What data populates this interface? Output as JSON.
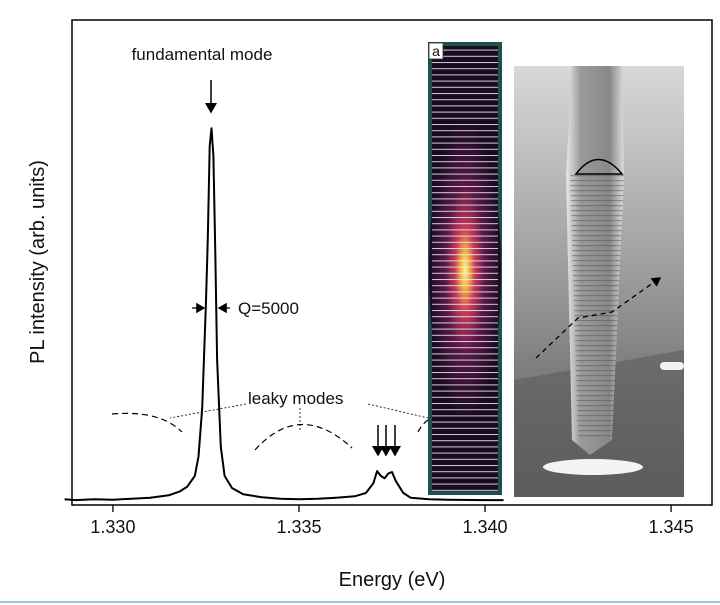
{
  "chart_data": {
    "type": "line",
    "x_label": "Energy (eV)",
    "y_label": "PL intensity (arb. units)",
    "annotations": [
      "fundamental mode",
      "Q=5000",
      "leaky modes"
    ],
    "inset_label": "a",
    "color": "#000000",
    "xlim": [
      1.3289,
      1.3461
    ],
    "ylim": [
      0,
      1
    ],
    "xticks": [
      {
        "value": 1.33,
        "label": "1.330"
      },
      {
        "value": 1.335,
        "label": "1.335"
      },
      {
        "value": 1.34,
        "label": "1.340"
      },
      {
        "value": 1.345,
        "label": "1.345"
      }
    ],
    "x": [
      1.3287,
      1.329,
      1.3295,
      1.33,
      1.3305,
      1.331,
      1.3315,
      1.3318,
      1.332,
      1.3322,
      1.3323,
      1.3324,
      1.3325,
      1.33255,
      1.3326,
      1.33265,
      1.3327,
      1.33275,
      1.3328,
      1.3329,
      1.333,
      1.3332,
      1.3335,
      1.334,
      1.3345,
      1.335,
      1.3355,
      1.336,
      1.3365,
      1.3368,
      1.337,
      1.3371,
      1.3372,
      1.3373,
      1.3374,
      1.3375,
      1.3376,
      1.3378,
      1.338,
      1.3385,
      1.339,
      1.34,
      1.3405
    ],
    "values": [
      0.012,
      0.01,
      0.012,
      0.011,
      0.013,
      0.015,
      0.02,
      0.028,
      0.038,
      0.06,
      0.1,
      0.2,
      0.42,
      0.55,
      0.74,
      0.777,
      0.72,
      0.52,
      0.3,
      0.12,
      0.06,
      0.035,
      0.022,
      0.016,
      0.013,
      0.012,
      0.013,
      0.015,
      0.018,
      0.025,
      0.045,
      0.07,
      0.06,
      0.055,
      0.065,
      0.068,
      0.05,
      0.025,
      0.015,
      0.012,
      0.011,
      0.01,
      0.01
    ]
  }
}
